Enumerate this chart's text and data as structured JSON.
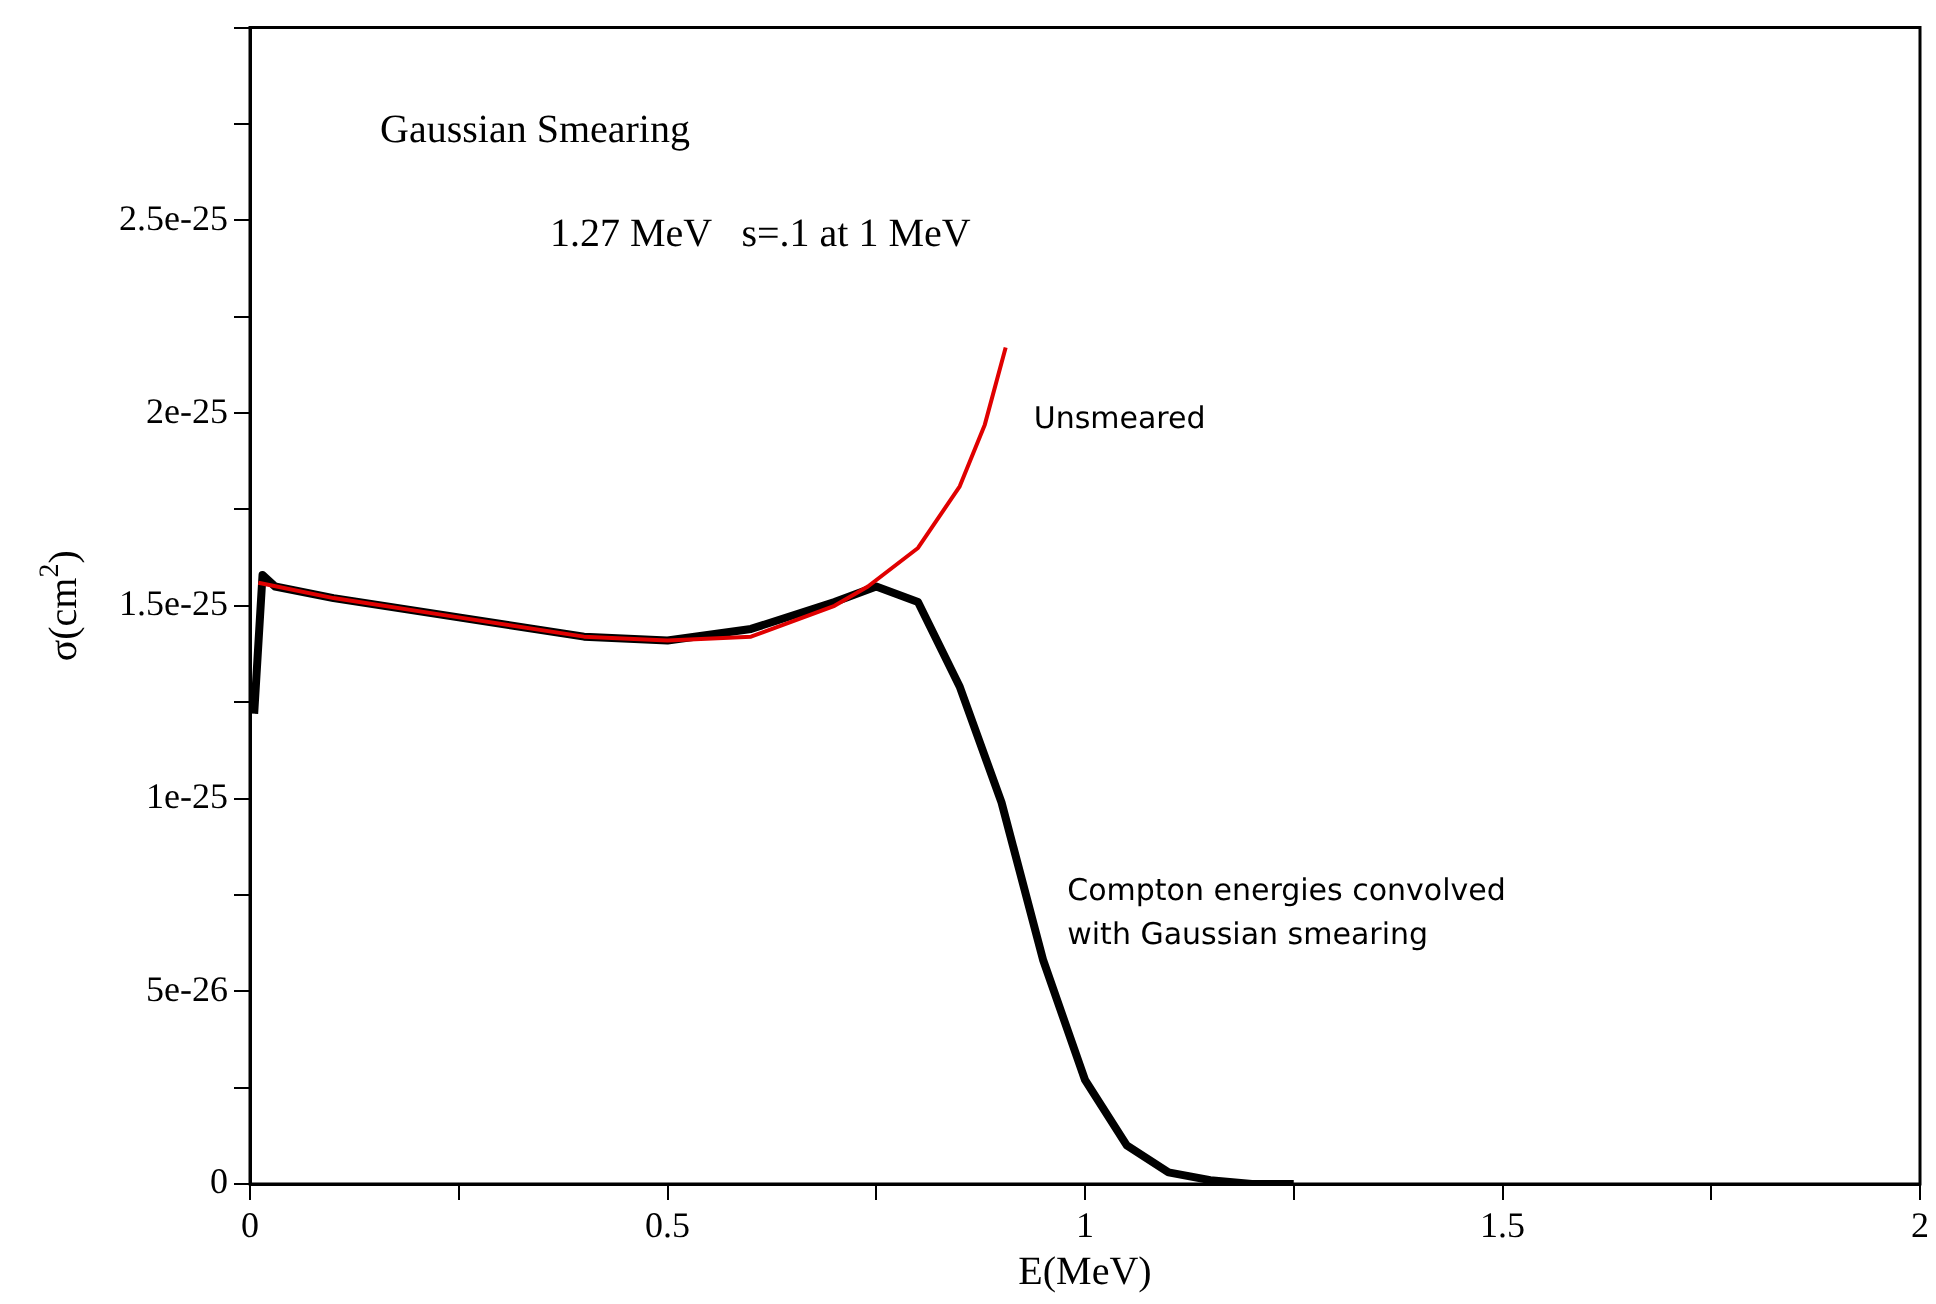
{
  "chart_data": {
    "type": "line",
    "xlabel": "E(MeV)",
    "ylabel": "σ(cm$^{2}$)",
    "annotations": [
      "Gaussian Smearing",
      "1.27 MeV   s=.1 at 1 MeV"
    ],
    "xlim": [
      0,
      2
    ],
    "ylim": [
      0,
      3e-25
    ],
    "xticks": [
      0,
      {
        "value": 0.25,
        "label": null
      },
      0.5,
      {
        "value": 0.75,
        "label": null
      },
      1,
      {
        "value": 1.25,
        "label": null
      },
      1.5,
      {
        "value": 1.75,
        "label": null
      },
      2
    ],
    "yticks": [
      {
        "value": 0,
        "label": "0"
      },
      {
        "value": 2.5e-26,
        "label": null
      },
      {
        "value": 5e-26,
        "label": "5e-26"
      },
      {
        "value": 7.5e-26,
        "label": null
      },
      {
        "value": 1e-25,
        "label": "1e-25"
      },
      {
        "value": 1.25e-25,
        "label": null
      },
      {
        "value": 1.5e-25,
        "label": "1.5e-25"
      },
      {
        "value": 1.75e-25,
        "label": null
      },
      {
        "value": 2e-25,
        "label": "2e-25"
      },
      {
        "value": 2.25e-25,
        "label": null
      },
      {
        "value": 2.5e-25,
        "label": "2.5e-25"
      },
      {
        "value": 2.75e-25,
        "label": null
      },
      {
        "value": 3e-25,
        "label": null
      }
    ],
    "grid": false,
    "marker": "none",
    "line_style": "solid",
    "series": [
      {
        "name": "Unsmeared",
        "color": "#e00000",
        "x": [
          0.01,
          0.1,
          0.25,
          0.4,
          0.5,
          0.6,
          0.7,
          0.74,
          0.8,
          0.85,
          0.88,
          0.905
        ],
        "values": [
          1.56e-25,
          1.52e-25,
          1.47e-25,
          1.42e-25,
          1.41e-25,
          1.42e-25,
          1.5e-25,
          1.55e-25,
          1.65e-25,
          1.81e-25,
          1.97e-25,
          2.17e-25
        ]
      },
      {
        "name": "Compton energies convolved with Gaussian smearing",
        "color": "#000000",
        "x": [
          0.005,
          0.015,
          0.03,
          0.1,
          0.25,
          0.4,
          0.5,
          0.6,
          0.7,
          0.75,
          0.8,
          0.85,
          0.9,
          0.95,
          1.0,
          1.05,
          1.1,
          1.15,
          1.2,
          1.25
        ],
        "values": [
          1.22e-25,
          1.58e-25,
          1.55e-25,
          1.52e-25,
          1.47e-25,
          1.42e-25,
          1.41e-25,
          1.44e-25,
          1.51e-25,
          1.55e-25,
          1.51e-25,
          1.29e-25,
          9.9e-26,
          5.8e-26,
          2.7e-26,
          1e-26,
          3e-27,
          1e-27,
          0,
          0
        ]
      }
    ]
  }
}
